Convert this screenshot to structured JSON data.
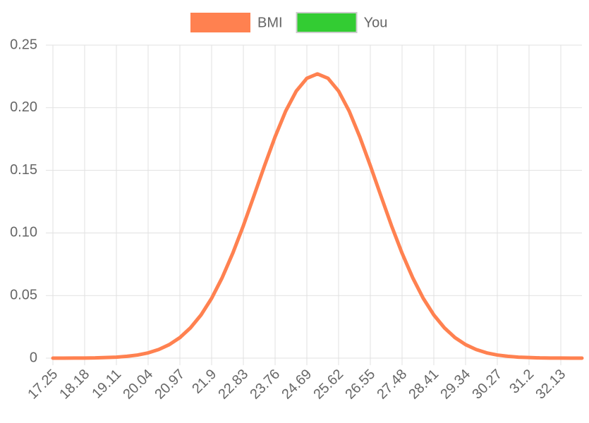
{
  "chart_data": {
    "type": "line",
    "categories": [
      "17.25",
      null,
      null,
      "18.18",
      null,
      null,
      "19.11",
      null,
      null,
      "20.04",
      null,
      null,
      "20.97",
      null,
      null,
      "21.9",
      null,
      null,
      "22.83",
      null,
      null,
      "23.76",
      null,
      null,
      "24.69",
      null,
      null,
      "25.62",
      null,
      null,
      "26.55",
      null,
      null,
      "27.48",
      null,
      null,
      "28.41",
      null,
      null,
      "29.34",
      null,
      null,
      "30.27",
      null,
      null,
      "31.2",
      null,
      null,
      "32.13",
      null,
      null
    ],
    "series": [
      {
        "name": "BMI",
        "color": "#ff8150",
        "values": [
          0.0,
          0.0,
          0.0001,
          0.0001,
          0.0002,
          0.0005,
          0.0008,
          0.0015,
          0.0025,
          0.0042,
          0.0069,
          0.0108,
          0.0164,
          0.0242,
          0.0345,
          0.0478,
          0.0643,
          0.0838,
          0.1058,
          0.1296,
          0.1537,
          0.1768,
          0.1973,
          0.2133,
          0.2235,
          0.227,
          0.2235,
          0.2133,
          0.1973,
          0.1768,
          0.1537,
          0.1296,
          0.1058,
          0.0838,
          0.0643,
          0.0478,
          0.0345,
          0.0242,
          0.0164,
          0.0108,
          0.0069,
          0.0042,
          0.0025,
          0.0015,
          0.0008,
          0.0005,
          0.0002,
          0.0001,
          0.0001,
          0.0,
          0.0
        ]
      },
      {
        "name": "You",
        "color": "#33cc33",
        "values": [
          null,
          null,
          null,
          null,
          null,
          null,
          null,
          null,
          null,
          null,
          null,
          null,
          null,
          null,
          null,
          null,
          null,
          null,
          null,
          null,
          null,
          null,
          null,
          null,
          null,
          null,
          null,
          null,
          null,
          null,
          null,
          null,
          null,
          null,
          null,
          null,
          null,
          null,
          null,
          null,
          null,
          null,
          null,
          null,
          null,
          null,
          null,
          null,
          null,
          null,
          null
        ]
      }
    ],
    "ylim": [
      0,
      0.25
    ],
    "yticks": [
      0,
      0.05,
      {
        "value": 0.1,
        "label": "0.10"
      },
      0.15,
      {
        "value": 0.2,
        "label": "0.20"
      },
      0.25
    ],
    "grid": true,
    "legend": "top"
  }
}
